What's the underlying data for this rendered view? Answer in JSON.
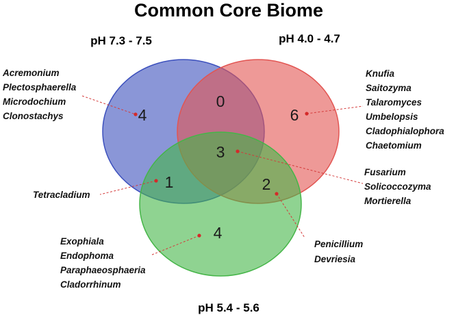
{
  "title": "Common Core Biome",
  "colors": {
    "set_a": "#3c50bd",
    "set_b": "#e25552",
    "set_c": "#45b548",
    "leader": "#d43a3a"
  },
  "sets": [
    {
      "id": "a",
      "label": "pH 7.3 - 7.5"
    },
    {
      "id": "b",
      "label": "pH 4.0 - 4.7"
    },
    {
      "id": "c",
      "label": "pH 5.4 - 5.6"
    }
  ],
  "regions": [
    {
      "id": "a_only",
      "count": "4",
      "genera": [
        "Acremonium",
        "Plectosphaerella",
        "Microdochium",
        "Clonostachys"
      ]
    },
    {
      "id": "ab",
      "count": "0",
      "genera": []
    },
    {
      "id": "b_only",
      "count": "6",
      "genera": [
        "Knufia",
        "Saitozyma",
        "Talaromyces",
        "Umbelopsis",
        "Cladophialophora",
        "Chaetomium"
      ]
    },
    {
      "id": "abc",
      "count": "3",
      "genera": [
        "Fusarium",
        "Solicoccozyma",
        "Mortierella"
      ]
    },
    {
      "id": "ac",
      "count": "1",
      "genera": [
        "Tetracladium"
      ]
    },
    {
      "id": "bc",
      "count": "2",
      "genera": [
        "Penicillium",
        "Devriesia"
      ]
    },
    {
      "id": "c_only",
      "count": "4",
      "genera": [
        "Exophiala",
        "Endophoma",
        "Paraphaeosphaeria",
        "Cladorrhinum"
      ]
    }
  ]
}
